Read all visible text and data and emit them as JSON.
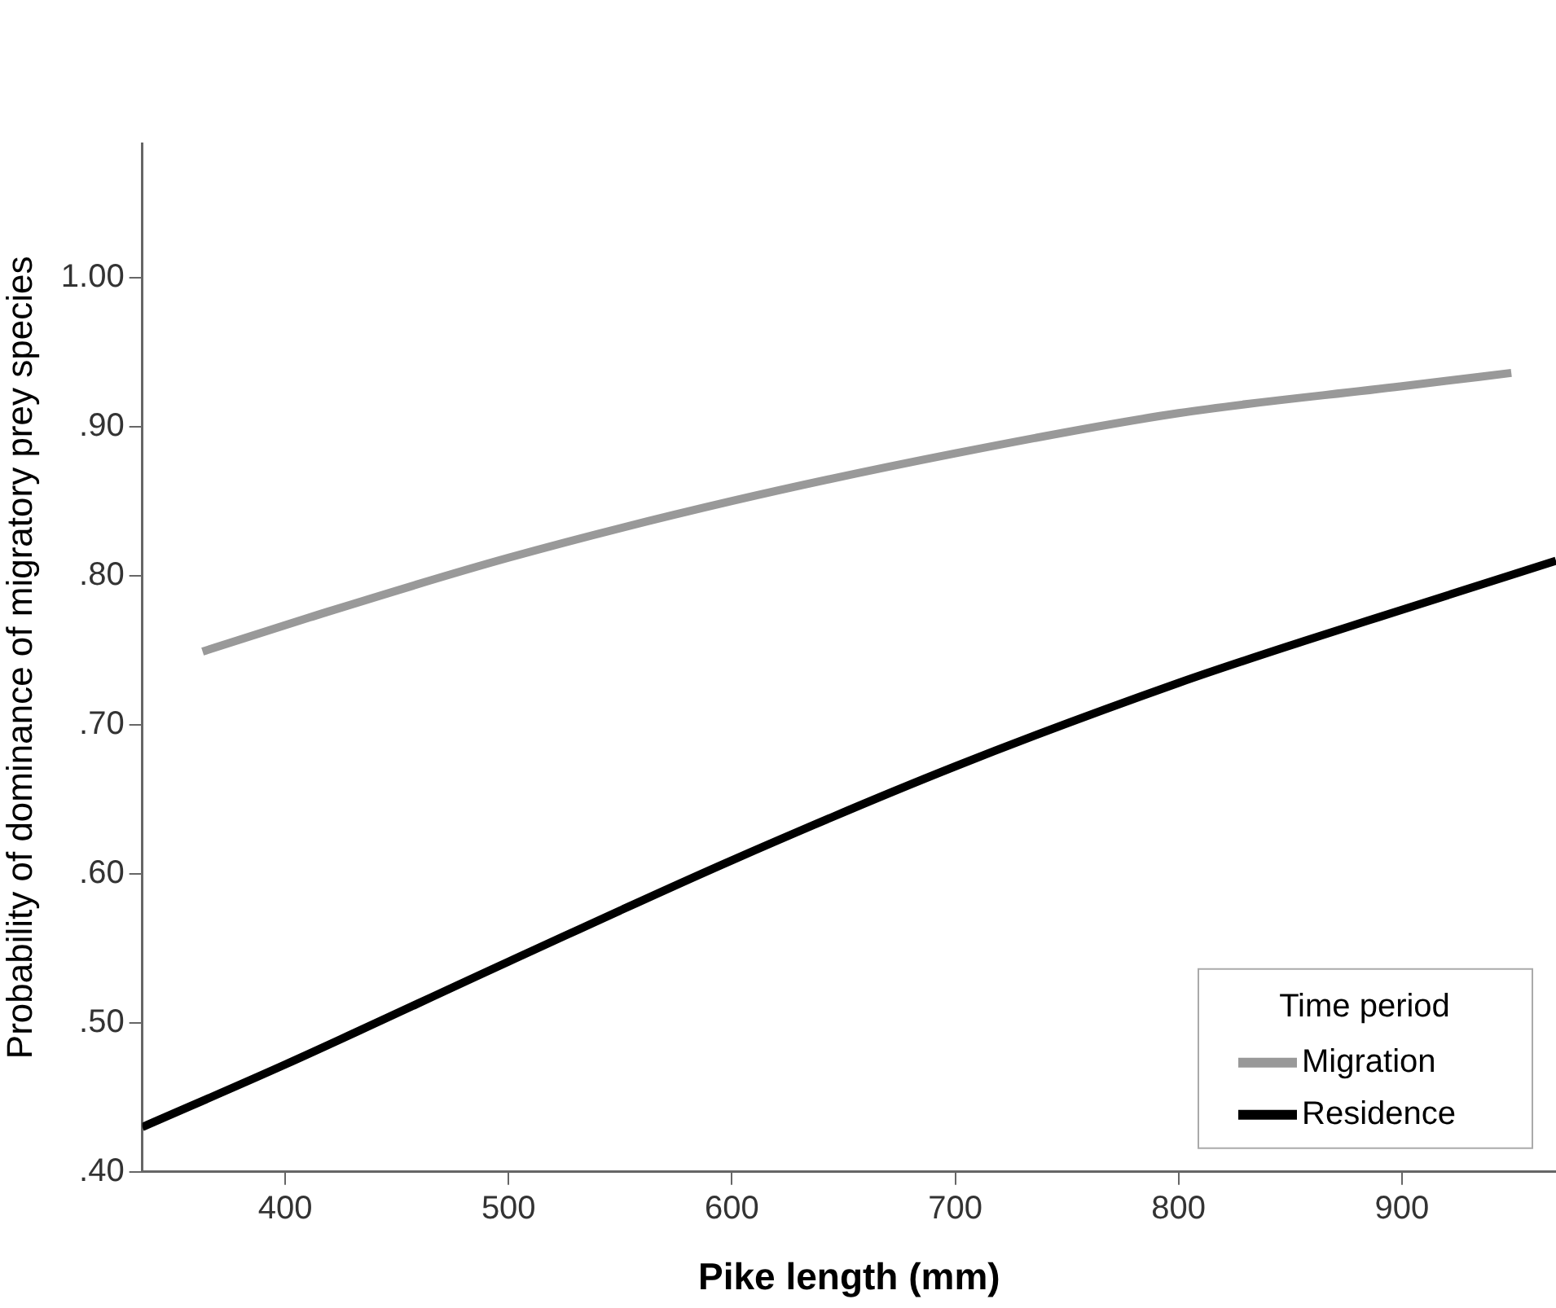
{
  "chart_data": {
    "type": "line",
    "xlabel": "Pike length (mm)",
    "ylabel": "Probability of dominance of migratory prey species",
    "legend_title": "Time period",
    "legend": "bottom right",
    "grid": false,
    "marker": "none",
    "line_style": "solid",
    "xlim": [
      336,
      969
    ],
    "xticks": [
      400,
      500,
      600,
      700,
      800,
      900
    ],
    "ylim": [
      0.4,
      1.09
    ],
    "yticks": [
      {
        "value": 0.4,
        "label": ".40"
      },
      {
        "value": 0.5,
        "label": ".50"
      },
      {
        "value": 0.6,
        "label": ".60"
      },
      {
        "value": 0.7,
        "label": ".70"
      },
      {
        "value": 0.8,
        "label": ".80"
      },
      {
        "value": 0.9,
        "label": ".90"
      },
      {
        "value": 1.0,
        "label": "1.00"
      }
    ],
    "series": [
      {
        "name": "Migration",
        "color": "#999999",
        "x": [
          363,
          411,
          500,
          600,
          700,
          800,
          900,
          949
        ],
        "values": [
          0.749,
          0.772,
          0.812,
          0.85,
          0.882,
          0.909,
          0.927,
          0.936
        ]
      },
      {
        "name": "Residence",
        "color": "#000000",
        "x": [
          336,
          400,
          500,
          600,
          700,
          800,
          856,
          900,
          969
        ],
        "values": [
          0.43,
          0.472,
          0.541,
          0.609,
          0.672,
          0.728,
          0.756,
          0.777,
          0.81
        ]
      }
    ]
  }
}
